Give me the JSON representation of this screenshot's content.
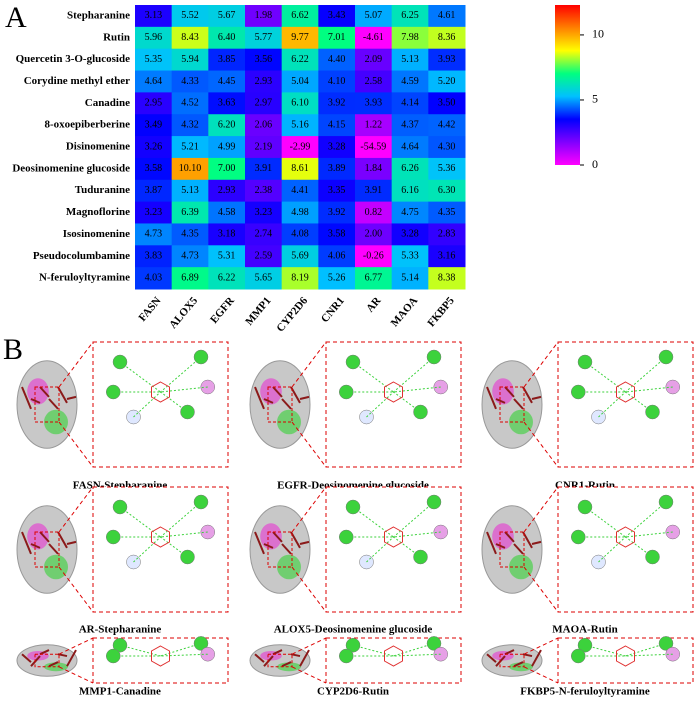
{
  "panel_labels": [
    "A",
    "B"
  ],
  "chart_data": {
    "type": "heatmap",
    "rows": [
      "Stepharanine",
      "Rutin",
      "Quercetin 3-O-glucoside",
      "Corydine methyl ether",
      "Canadine",
      "8-oxoepiberberine",
      "Disinomenine",
      "Deosinomenine glucoside",
      "Tuduranine",
      "Magnoflorine",
      "Isosinomenine",
      "Pseudocolumbamine",
      "N-feruloyltyramine"
    ],
    "categories": [
      "FASN",
      "ALOX5",
      "EGFR",
      "MMP1",
      "CYP2D6",
      "CNR1",
      "AR",
      "MAOA",
      "FKBP5"
    ],
    "values": [
      [
        3.13,
        5.52,
        5.67,
        1.98,
        6.62,
        3.43,
        5.07,
        6.25,
        4.61
      ],
      [
        5.96,
        8.43,
        6.4,
        5.77,
        9.77,
        7.01,
        -4.61,
        7.98,
        8.36
      ],
      [
        5.35,
        5.94,
        3.85,
        3.56,
        6.22,
        4.4,
        2.09,
        5.13,
        3.93
      ],
      [
        4.64,
        4.33,
        4.45,
        2.93,
        5.04,
        4.1,
        2.58,
        4.59,
        5.2
      ],
      [
        2.95,
        4.52,
        3.63,
        2.97,
        6.1,
        3.92,
        3.93,
        4.14,
        3.5
      ],
      [
        3.49,
        4.32,
        6.2,
        2.06,
        5.16,
        4.15,
        1.22,
        4.37,
        4.42
      ],
      [
        3.26,
        5.21,
        4.99,
        2.19,
        -2.99,
        3.28,
        -54.59,
        4.64,
        4.3
      ],
      [
        3.58,
        10.1,
        7.0,
        3.91,
        8.61,
        3.89,
        1.84,
        6.26,
        5.36
      ],
      [
        3.87,
        5.13,
        2.93,
        2.38,
        4.41,
        3.35,
        3.91,
        6.16,
        6.3
      ],
      [
        3.23,
        6.39,
        4.58,
        3.23,
        4.98,
        3.92,
        0.82,
        4.75,
        4.35
      ],
      [
        4.73,
        4.35,
        3.18,
        2.74,
        4.08,
        3.58,
        2.0,
        3.28,
        2.83
      ],
      [
        3.83,
        4.73,
        5.31,
        2.59,
        5.69,
        4.06,
        -0.26,
        5.33,
        3.16
      ],
      [
        4.03,
        6.89,
        6.22,
        5.65,
        8.19,
        5.26,
        6.77,
        5.14,
        8.38
      ]
    ],
    "value_labels": [
      [
        "3.13",
        "5.52",
        "5.67",
        "1.98",
        "6.62",
        "3.43",
        "5.07",
        "6.25",
        "4.61"
      ],
      [
        "5.96",
        "8.43",
        "6.40",
        "5.77",
        "9.77",
        "7.01",
        "-4.61",
        "7.98",
        "8.36"
      ],
      [
        "5.35",
        "5.94",
        "3.85",
        "3.56",
        "6.22",
        "4.40",
        "2.09",
        "5.13",
        "3.93"
      ],
      [
        "4.64",
        "4.33",
        "4.45",
        "2.93",
        "5.04",
        "4.10",
        "2.58",
        "4.59",
        "5.20"
      ],
      [
        "2.95",
        "4.52",
        "3.63",
        "2.97",
        "6.10",
        "3.92",
        "3.93",
        "4.14",
        "3.50"
      ],
      [
        "3.49",
        "4.32",
        "6.20",
        "2.06",
        "5.16",
        "4.15",
        "1.22",
        "4.37",
        "4.42"
      ],
      [
        "3.26",
        "5.21",
        "4.99",
        "2.19",
        "-2.99",
        "3.28",
        "-54.59",
        "4.64",
        "4.30"
      ],
      [
        "3.58",
        "10.10",
        "7.00",
        "3.91",
        "8.61",
        "3.89",
        "1.84",
        "6.26",
        "5.36"
      ],
      [
        "3.87",
        "5.13",
        "2.93",
        "2.38",
        "4.41",
        "3.35",
        "3.91",
        "6.16",
        "6.30"
      ],
      [
        "3.23",
        "6.39",
        "4.58",
        "3.23",
        "4.98",
        "3.92",
        "0.82",
        "4.75",
        "4.35"
      ],
      [
        "4.73",
        "4.35",
        "3.18",
        "2.74",
        "4.08",
        "3.58",
        "2.00",
        "3.28",
        "2.83"
      ],
      [
        "3.83",
        "4.73",
        "5.31",
        "2.59",
        "5.69",
        "4.06",
        "-0.26",
        "5.33",
        "3.16"
      ],
      [
        "4.03",
        "6.89",
        "6.22",
        "5.65",
        "8.19",
        "5.26",
        "6.77",
        "5.14",
        "8.38"
      ]
    ],
    "zlim": [
      0,
      12.3
    ],
    "zticks": [
      0,
      5,
      10
    ],
    "colormap": [
      "#ff00ff",
      "#8000ff",
      "#0000ff",
      "#00c0ff",
      "#00ff80",
      "#ffff00",
      "#ff8000",
      "#ff0000"
    ]
  },
  "docking_captions": [
    "FASN-Stepharanine",
    "EGFR-Deosinomenine glucoside",
    "CNR1-Rutin",
    "AR-Stepharanine",
    "ALOX5-Deosinomenine glucoside",
    "MAOA-Rutin",
    "MMP1-Canadine",
    "CYP2D6-Rutin",
    "FKBP5-N-feruloyltyramine"
  ]
}
